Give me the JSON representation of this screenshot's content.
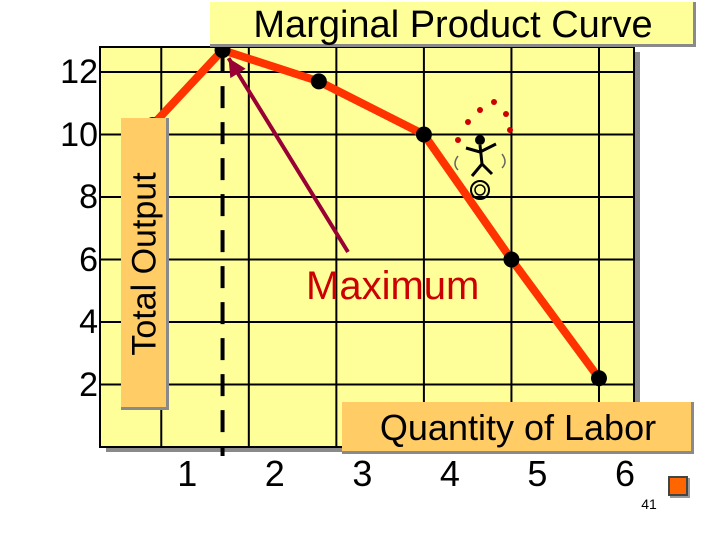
{
  "chart_data": {
    "type": "line",
    "title": "Marginal Product Curve",
    "xlabel": "Quantity of Labor",
    "ylabel": "Total Output",
    "x_ticks": [
      "1",
      "2",
      "3",
      "4",
      "5",
      "6"
    ],
    "y_ticks": [
      "2",
      "4",
      "6",
      "8",
      "10",
      "12"
    ],
    "xlim": [
      0.3,
      6.4
    ],
    "ylim": [
      0,
      12.8
    ],
    "grid": true,
    "annotation": "Maximum",
    "series": [
      {
        "points": [
          [
            0.9,
            10.3
          ],
          [
            1.7,
            12.7
          ],
          [
            2.8,
            11.7
          ],
          [
            4.0,
            10.0
          ],
          [
            5.0,
            6.0
          ],
          [
            6.0,
            2.2
          ]
        ]
      }
    ],
    "colors": {
      "line": "#ff3300",
      "markers": "#000000",
      "annotation_text": "#cc0000",
      "arrow": "#990033",
      "plot_bg": "#ffff99",
      "label_bg": "#ffcc66",
      "dashed_marker": "#000000"
    }
  },
  "footer": {
    "slide_number": "41",
    "nav_icon": "orange-square-button"
  }
}
